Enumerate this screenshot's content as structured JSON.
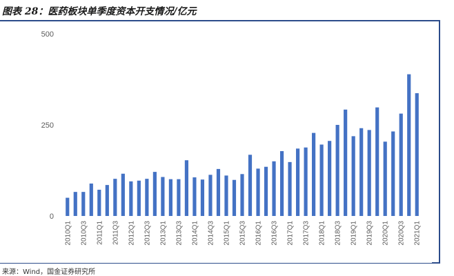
{
  "header": {
    "title": "图表 28：医药板块单季度资本开支情况/亿元"
  },
  "footer": {
    "source": "来源：Wind，国金证券研究所"
  },
  "colors": {
    "bar": "#4472c4",
    "rule": "#2b4b8a",
    "axis_text": "#595959"
  },
  "chart_data": {
    "type": "bar",
    "title": "图表 28：医药板块单季度资本开支情况/亿元",
    "xlabel": "",
    "ylabel": "",
    "ylim": [
      0,
      500
    ],
    "yticks": [
      0,
      250,
      500
    ],
    "grid": false,
    "legend": "none",
    "categories": [
      "2010Q1",
      "2010Q2",
      "2010Q3",
      "2010Q4",
      "2011Q1",
      "2011Q2",
      "2011Q3",
      "2011Q4",
      "2012Q1",
      "2012Q2",
      "2012Q3",
      "2012Q4",
      "2013Q1",
      "2013Q2",
      "2013Q3",
      "2013Q4",
      "2014Q1",
      "2014Q2",
      "2014Q3",
      "2014Q4",
      "2015Q1",
      "2015Q2",
      "2015Q3",
      "2015Q4",
      "2016Q1",
      "2016Q2",
      "2016Q3",
      "2016Q4",
      "2017Q1",
      "2017Q2",
      "2017Q3",
      "2017Q4",
      "2018Q1",
      "2018Q2",
      "2018Q3",
      "2018Q4",
      "2019Q1",
      "2019Q2",
      "2019Q3",
      "2019Q4",
      "2020Q1",
      "2020Q2",
      "2020Q3",
      "2020Q4",
      "2021Q1"
    ],
    "tick_labels": [
      "2010Q1",
      "2010Q3",
      "2011Q1",
      "2011Q3",
      "2012Q1",
      "2012Q3",
      "2013Q1",
      "2013Q3",
      "2014Q1",
      "2014Q3",
      "2015Q1",
      "2015Q3",
      "2016Q1",
      "2016Q3",
      "2017Q1",
      "2017Q3",
      "2018Q1",
      "2018Q3",
      "2019Q1",
      "2019Q3",
      "2020Q1",
      "2020Q3",
      "2021Q1"
    ],
    "series": [
      {
        "values": [
          50,
          66,
          66,
          89,
          72,
          85,
          102,
          116,
          95,
          97,
          102,
          121,
          107,
          101,
          101,
          153,
          106,
          100,
          113,
          129,
          111,
          99,
          115,
          168,
          130,
          135,
          150,
          178,
          148,
          185,
          188,
          228,
          196,
          206,
          250,
          292,
          219,
          241,
          236,
          298,
          204,
          232,
          281,
          389,
          337
        ]
      }
    ]
  }
}
